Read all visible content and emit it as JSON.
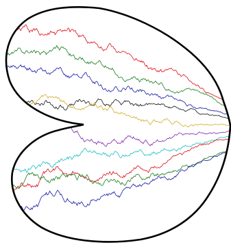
{
  "figure": {
    "outline_color": "#000000",
    "background": "#ffffff",
    "paths": [
      {
        "id": "red-top",
        "color": "#e0232a",
        "seed": 11
      },
      {
        "id": "green-top",
        "color": "#2f8a33",
        "seed": 23
      },
      {
        "id": "blue-top",
        "color": "#2b2fb0",
        "seed": 37
      },
      {
        "id": "black-mid",
        "color": "#2a2a2a",
        "seed": 41
      },
      {
        "id": "yellow-mid",
        "color": "#d8b43a",
        "seed": 53
      },
      {
        "id": "purple-low",
        "color": "#8a3db8",
        "seed": 67
      },
      {
        "id": "cyan-low",
        "color": "#30c4c8",
        "seed": 71
      },
      {
        "id": "red-low",
        "color": "#e0232a",
        "seed": 83
      },
      {
        "id": "green-low",
        "color": "#2f8a33",
        "seed": 97
      },
      {
        "id": "blue-low",
        "color": "#2b2fb0",
        "seed": 101
      }
    ]
  }
}
